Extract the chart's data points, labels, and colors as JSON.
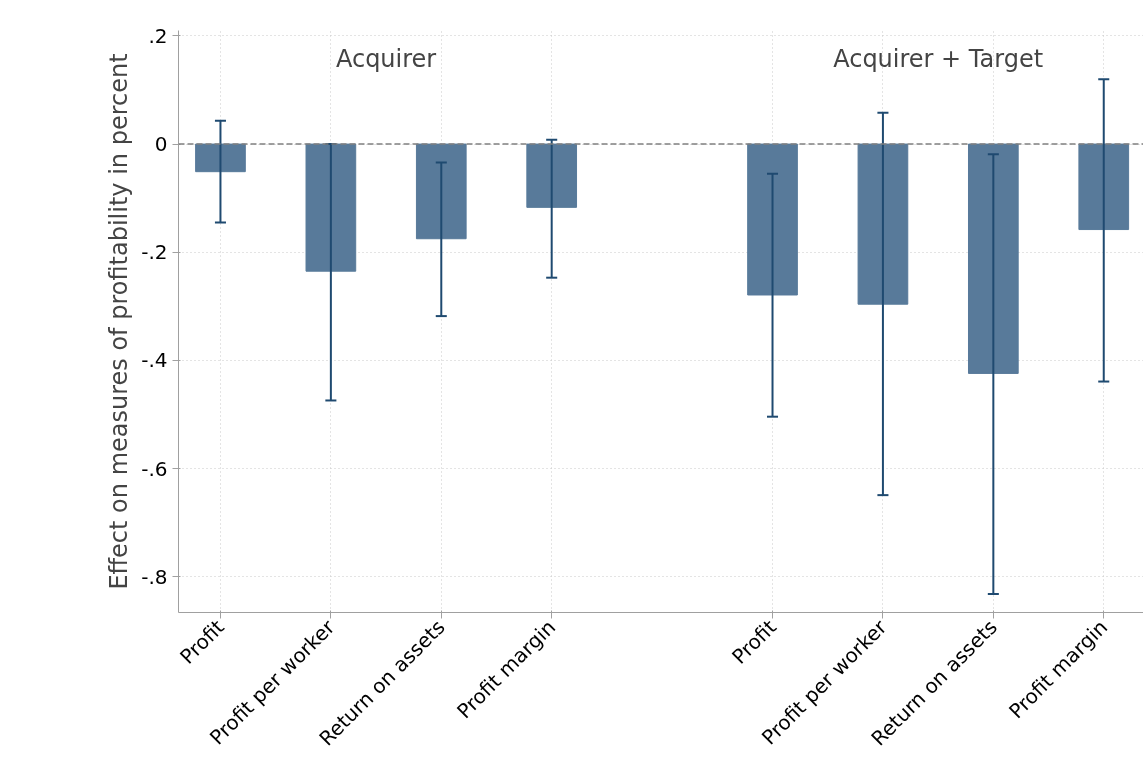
{
  "chart_data": {
    "type": "bar",
    "ylabel": "Effect on measures of profitability in percent",
    "categories": [
      "Profit",
      "Profit per worker",
      "Return on assets",
      "Profit margin",
      null,
      "Profit",
      "Profit per worker",
      "Return on assets",
      "Profit margin"
    ],
    "values": [
      -0.051,
      -0.235,
      -0.175,
      -0.117,
      null,
      -0.279,
      -0.296,
      -0.424,
      -0.158
    ],
    "errors": [
      [
        -0.145,
        0.043
      ],
      [
        -0.474,
        0.0
      ],
      [
        -0.318,
        -0.034
      ],
      [
        -0.247,
        0.008
      ],
      null,
      [
        -0.504,
        -0.055
      ],
      [
        -0.649,
        0.058
      ],
      [
        -0.832,
        -0.019
      ],
      [
        -0.439,
        0.12
      ]
    ],
    "color": "#587a9a",
    "annotations": [
      "Acquirer",
      "Acquirer + Target"
    ],
    "ylim": [
      -0.866,
      0.21
    ],
    "yticks": [
      {
        "value": 0.2,
        "label": ".2"
      },
      0,
      {
        "value": -0.2,
        "label": "-.2"
      },
      {
        "value": -0.4,
        "label": "-.4"
      },
      {
        "value": -0.6,
        "label": "-.6"
      },
      {
        "value": -0.8,
        "label": "-.8"
      }
    ],
    "ref_lines": [
      {
        "axis": "y",
        "value": 0,
        "color": "#808080",
        "line_style": "dashed"
      }
    ],
    "grid": true
  }
}
